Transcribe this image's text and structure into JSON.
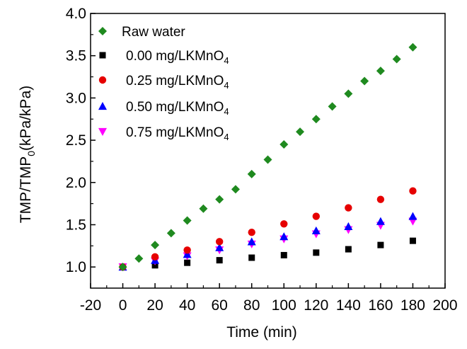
{
  "chart_data": {
    "type": "scatter",
    "xlabel": "Time (min)",
    "ylabel": {
      "main": "TMP/TMP",
      "sub": "0",
      "tail": "(kPa/kPa)"
    },
    "xlim": [
      -20,
      200
    ],
    "ylim": [
      0.75,
      4.0
    ],
    "xticks": [
      -20,
      0,
      20,
      40,
      60,
      80,
      100,
      120,
      140,
      160,
      180,
      200
    ],
    "yticks": [
      1.0,
      1.5,
      2.0,
      2.5,
      3.0,
      3.5,
      4.0
    ],
    "ytick_labels": [
      "1.0",
      "1.5",
      "2.0",
      "2.5",
      "3.0",
      "3.5",
      "4.0"
    ],
    "grid": false,
    "legend_position": "top-left",
    "series": [
      {
        "name": "Raw water",
        "label_main": "Raw water",
        "label_sub": "",
        "marker": "diamond",
        "color": "#1f8a1f",
        "x": [
          0,
          10,
          20,
          30,
          40,
          50,
          60,
          70,
          80,
          90,
          100,
          110,
          120,
          130,
          140,
          150,
          160,
          170,
          180
        ],
        "y": [
          1.0,
          1.1,
          1.26,
          1.4,
          1.55,
          1.69,
          1.8,
          1.92,
          2.1,
          2.27,
          2.45,
          2.6,
          2.75,
          2.9,
          3.05,
          3.2,
          3.32,
          3.46,
          3.6
        ]
      },
      {
        "name": "0.00 mg/LKMnO4",
        "label_main": "0.00 mg/LKMnO",
        "label_sub": "4",
        "marker": "square",
        "color": "#000000",
        "x": [
          0,
          20,
          40,
          60,
          80,
          100,
          120,
          140,
          160,
          180
        ],
        "y": [
          1.0,
          1.02,
          1.05,
          1.08,
          1.11,
          1.14,
          1.17,
          1.21,
          1.26,
          1.31
        ]
      },
      {
        "name": "0.25 mg/LKMnO4",
        "label_main": "0.25 mg/LKMnO",
        "label_sub": "4",
        "marker": "circle",
        "color": "#e60000",
        "x": [
          0,
          20,
          40,
          60,
          80,
          100,
          120,
          140,
          160,
          180
        ],
        "y": [
          1.0,
          1.12,
          1.2,
          1.3,
          1.41,
          1.51,
          1.6,
          1.7,
          1.8,
          1.9
        ]
      },
      {
        "name": "0.50 mg/LKMnO4",
        "label_main": "0.50 mg/LKMnO",
        "label_sub": "4",
        "marker": "triangle-up",
        "color": "#0000ff",
        "x": [
          0,
          20,
          40,
          60,
          80,
          100,
          120,
          140,
          160,
          180
        ],
        "y": [
          1.0,
          1.08,
          1.15,
          1.23,
          1.3,
          1.36,
          1.43,
          1.48,
          1.54,
          1.6
        ]
      },
      {
        "name": "0.75 mg/LKMnO4",
        "label_main": "0.75 mg/LKMnO",
        "label_sub": "4",
        "marker": "triangle-down",
        "color": "#ff00ff",
        "x": [
          0,
          20,
          40,
          60,
          80,
          100,
          120,
          140,
          160,
          180
        ],
        "y": [
          1.0,
          1.07,
          1.13,
          1.2,
          1.27,
          1.33,
          1.39,
          1.44,
          1.49,
          1.54
        ]
      }
    ]
  }
}
